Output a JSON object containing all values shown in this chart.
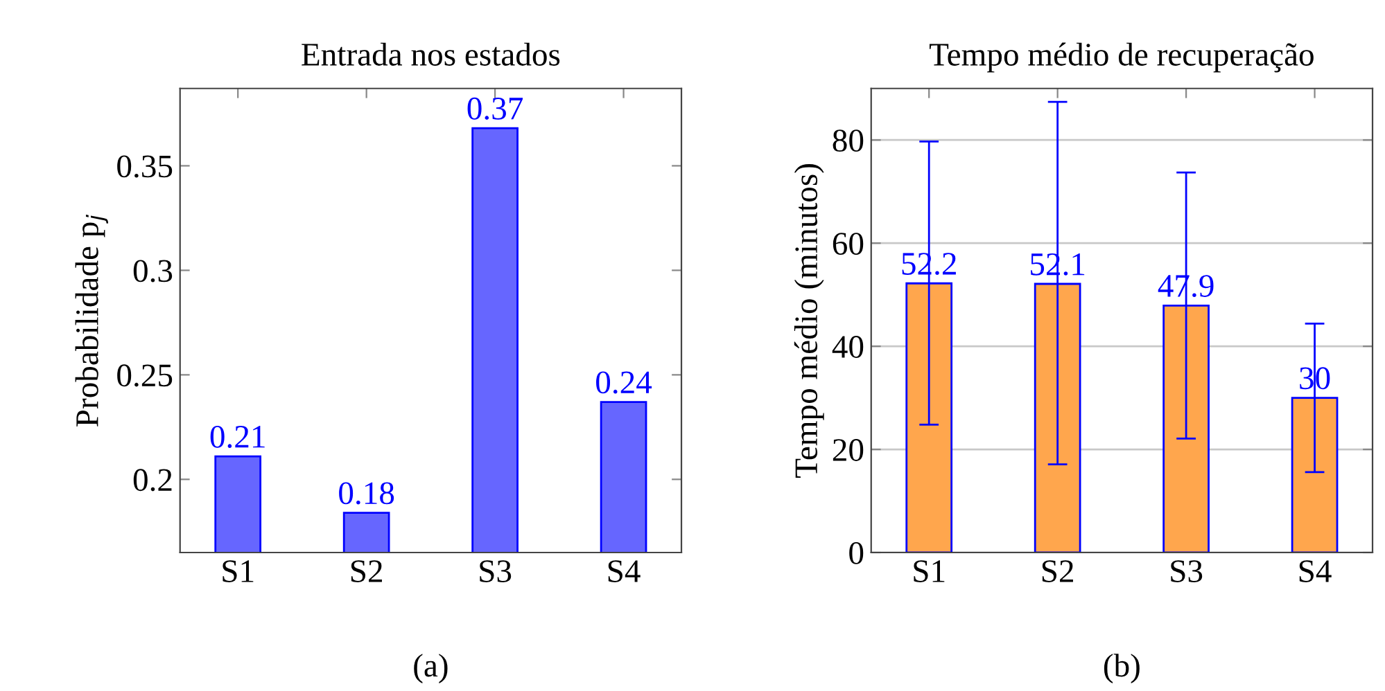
{
  "chart_data": [
    {
      "type": "bar",
      "title": "Entrada nos estados",
      "ylabel": "Probabilidade p$_{j}$",
      "categories": [
        "S1",
        "S2",
        "S3",
        "S4"
      ],
      "values": [
        0.211,
        0.184,
        0.368,
        0.237
      ],
      "value_labels": [
        "0.21",
        "0.18",
        "0.37",
        "0.24"
      ],
      "color": "#6666ff",
      "ylim": [
        0.165,
        0.387
      ],
      "yticks": [
        0.2,
        0.25,
        0.3,
        0.35
      ],
      "grid": false,
      "annotations": [
        "(a)"
      ]
    },
    {
      "type": "bar",
      "title": "Tempo médio de recuperação",
      "ylabel": "Tempo médio (minutos)",
      "categories": [
        "S1",
        "S2",
        "S3",
        "S4"
      ],
      "values": [
        52.2,
        52.1,
        47.9,
        30
      ],
      "errors": [
        [
          24.8,
          79.7
        ],
        [
          17.1,
          87.4
        ],
        [
          22.1,
          73.7
        ],
        [
          15.6,
          44.4
        ]
      ],
      "data_labels": true,
      "color": "#ffa64d",
      "ylim": [
        0,
        90
      ],
      "yticks": [
        0,
        20,
        40,
        60,
        80
      ],
      "grid": "y",
      "annotations": [
        "(b)"
      ]
    }
  ]
}
